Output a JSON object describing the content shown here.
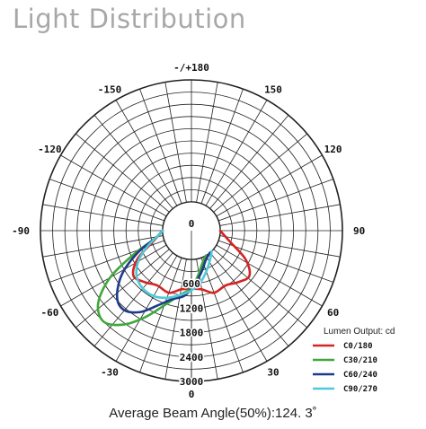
{
  "header": {
    "title": "Light Distribution"
  },
  "footer": {
    "beam_angle_text": "Average Beam Angle(50%):124. 3˚"
  },
  "chart_data": {
    "type": "polar-line",
    "angle_labels": [
      {
        "deg": 180,
        "text": "-/+180"
      },
      {
        "deg": -150,
        "text": "-150"
      },
      {
        "deg": 150,
        "text": "150"
      },
      {
        "deg": -120,
        "text": "-120"
      },
      {
        "deg": 120,
        "text": "120"
      },
      {
        "deg": -90,
        "text": "-90"
      },
      {
        "deg": 90,
        "text": "90"
      },
      {
        "deg": -60,
        "text": "-60"
      },
      {
        "deg": 60,
        "text": "60"
      },
      {
        "deg": -30,
        "text": "-30"
      },
      {
        "deg": 30,
        "text": "30"
      },
      {
        "deg": 0,
        "text": "0"
      }
    ],
    "radial_ticks": [
      {
        "value": 0,
        "text": "0"
      },
      {
        "value": 600,
        "text": "600"
      },
      {
        "value": 1200,
        "text": "1200"
      },
      {
        "value": 1800,
        "text": "1800"
      },
      {
        "value": 2400,
        "text": "2400"
      },
      {
        "value": 3000,
        "text": "3000"
      }
    ],
    "r_range": [
      0,
      3000
    ],
    "grid": true,
    "legend": {
      "title": "Lumen Output: cd",
      "position": "bottom-right"
    },
    "series": [
      {
        "name": "C0/180",
        "color": "#d42424",
        "points": [
          [
            -90,
            0
          ],
          [
            -75,
            250
          ],
          [
            -62,
            800
          ],
          [
            -52,
            1100
          ],
          [
            -42,
            1000
          ],
          [
            -32,
            880
          ],
          [
            -20,
            920
          ],
          [
            -10,
            760
          ],
          [
            0,
            720
          ],
          [
            10,
            760
          ],
          [
            20,
            920
          ],
          [
            32,
            880
          ],
          [
            42,
            1000
          ],
          [
            52,
            1100
          ],
          [
            62,
            800
          ],
          [
            75,
            250
          ],
          [
            90,
            0
          ]
        ]
      },
      {
        "name": "C30/210",
        "color": "#3fa83a",
        "points": [
          [
            -90,
            0
          ],
          [
            -78,
            200
          ],
          [
            -68,
            800
          ],
          [
            -60,
            1600
          ],
          [
            -52,
            2200
          ],
          [
            -44,
            2400
          ],
          [
            -36,
            2150
          ],
          [
            -28,
            1700
          ],
          [
            -20,
            1250
          ],
          [
            -10,
            900
          ],
          [
            0,
            700
          ],
          [
            8,
            420
          ],
          [
            18,
            150
          ],
          [
            30,
            0
          ]
        ]
      },
      {
        "name": "C60/240",
        "color": "#1e3a8a",
        "points": [
          [
            -90,
            0
          ],
          [
            -78,
            200
          ],
          [
            -68,
            700
          ],
          [
            -58,
            1300
          ],
          [
            -48,
            1750
          ],
          [
            -40,
            1850
          ],
          [
            -32,
            1650
          ],
          [
            -24,
            1300
          ],
          [
            -16,
            1050
          ],
          [
            -6,
            900
          ],
          [
            4,
            600
          ],
          [
            14,
            330
          ],
          [
            26,
            100
          ],
          [
            40,
            0
          ]
        ]
      },
      {
        "name": "C90/270",
        "color": "#4fc9d8",
        "points": [
          [
            -90,
            0
          ],
          [
            -80,
            150
          ],
          [
            -70,
            450
          ],
          [
            -60,
            800
          ],
          [
            -50,
            1050
          ],
          [
            -40,
            1150
          ],
          [
            -30,
            1150
          ],
          [
            -20,
            1050
          ],
          [
            -10,
            900
          ],
          [
            0,
            760
          ],
          [
            10,
            580
          ],
          [
            20,
            360
          ],
          [
            32,
            150
          ],
          [
            45,
            0
          ]
        ]
      }
    ]
  }
}
